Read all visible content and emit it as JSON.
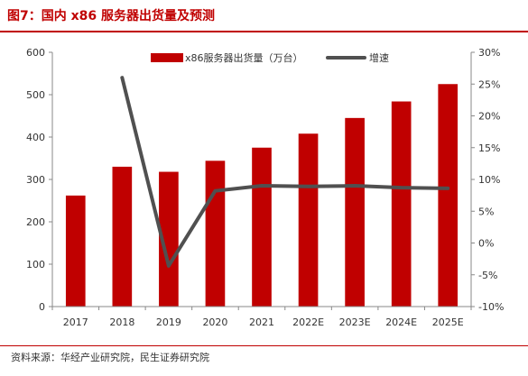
{
  "figure": {
    "title": "图7：国内 x86 服务器出货量及预测",
    "source": "资料来源：华经产业研究院，民生证券研究院"
  },
  "colors": {
    "bar": "#c00000",
    "line": "#505050",
    "accent": "#c00000",
    "axis": "#888888"
  },
  "chart_data": {
    "type": "bar",
    "categories": [
      "2017",
      "2018",
      "2019",
      "2020",
      "2021",
      "2022E",
      "2023E",
      "2024E",
      "2025E"
    ],
    "series": [
      {
        "name": "x86服务器出货量（万台）",
        "type": "bar",
        "axis": "left",
        "values": [
          262,
          330,
          318,
          344,
          375,
          408,
          445,
          484,
          525
        ]
      },
      {
        "name": "增速",
        "type": "line",
        "axis": "right",
        "values": [
          null,
          26.0,
          -3.6,
          8.2,
          9.0,
          8.9,
          9.0,
          8.7,
          8.6
        ]
      }
    ],
    "y_left": {
      "ylim": [
        0,
        600
      ],
      "ticks": [
        "0",
        "100",
        "200",
        "300",
        "400",
        "500",
        "600"
      ]
    },
    "y_right": {
      "ylim": [
        -10,
        30
      ],
      "ticks": [
        "-10%",
        "-5%",
        "0%",
        "5%",
        "10%",
        "15%",
        "20%",
        "25%",
        "30%"
      ]
    },
    "legend": "top-center",
    "grid": false
  }
}
